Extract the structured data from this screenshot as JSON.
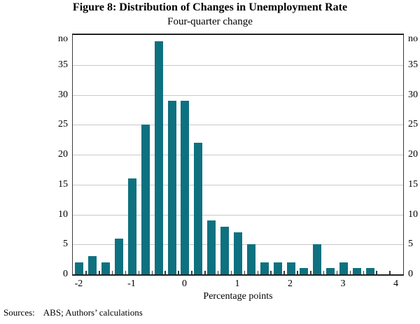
{
  "figure": {
    "title": "Figure 8: Distribution of Changes in Unemployment Rate",
    "subtitle": "Four-quarter change",
    "sources_label": "Sources:",
    "sources_text": "ABS; Authors’ calculations"
  },
  "chart_data": {
    "type": "bar",
    "title": "Figure 8: Distribution of Changes in Unemployment Rate",
    "subtitle": "Four-quarter change",
    "xlabel": "Percentage points",
    "y_unit_label": "no",
    "x": [
      -2,
      -1.75,
      -1.5,
      -1.25,
      -1,
      -0.75,
      -0.5,
      -0.25,
      0,
      0.25,
      0.5,
      0.75,
      1,
      1.25,
      1.5,
      1.75,
      2,
      2.25,
      2.5,
      2.75,
      3,
      3.25,
      3.5
    ],
    "values": [
      2,
      3,
      2,
      6,
      16,
      25,
      39,
      29,
      29,
      22,
      9,
      8,
      7,
      5,
      2,
      2,
      2,
      1,
      5,
      1,
      2,
      1,
      1
    ],
    "bin_width": 0.25,
    "xlim": [
      -2.125,
      4.125
    ],
    "ylim": [
      0,
      40
    ],
    "x_ticks": [
      -2,
      -1,
      0,
      1,
      2,
      3,
      4
    ],
    "y_ticks": [
      0,
      5,
      10,
      15,
      20,
      25,
      30,
      35
    ],
    "grid": "horizontal",
    "legend": "none",
    "bar_color": "#0e7180",
    "gridline_color": "#c9c9c9",
    "axis_color": "#3a3a3a",
    "sources": "Sources: ABS; Authors’ calculations"
  }
}
